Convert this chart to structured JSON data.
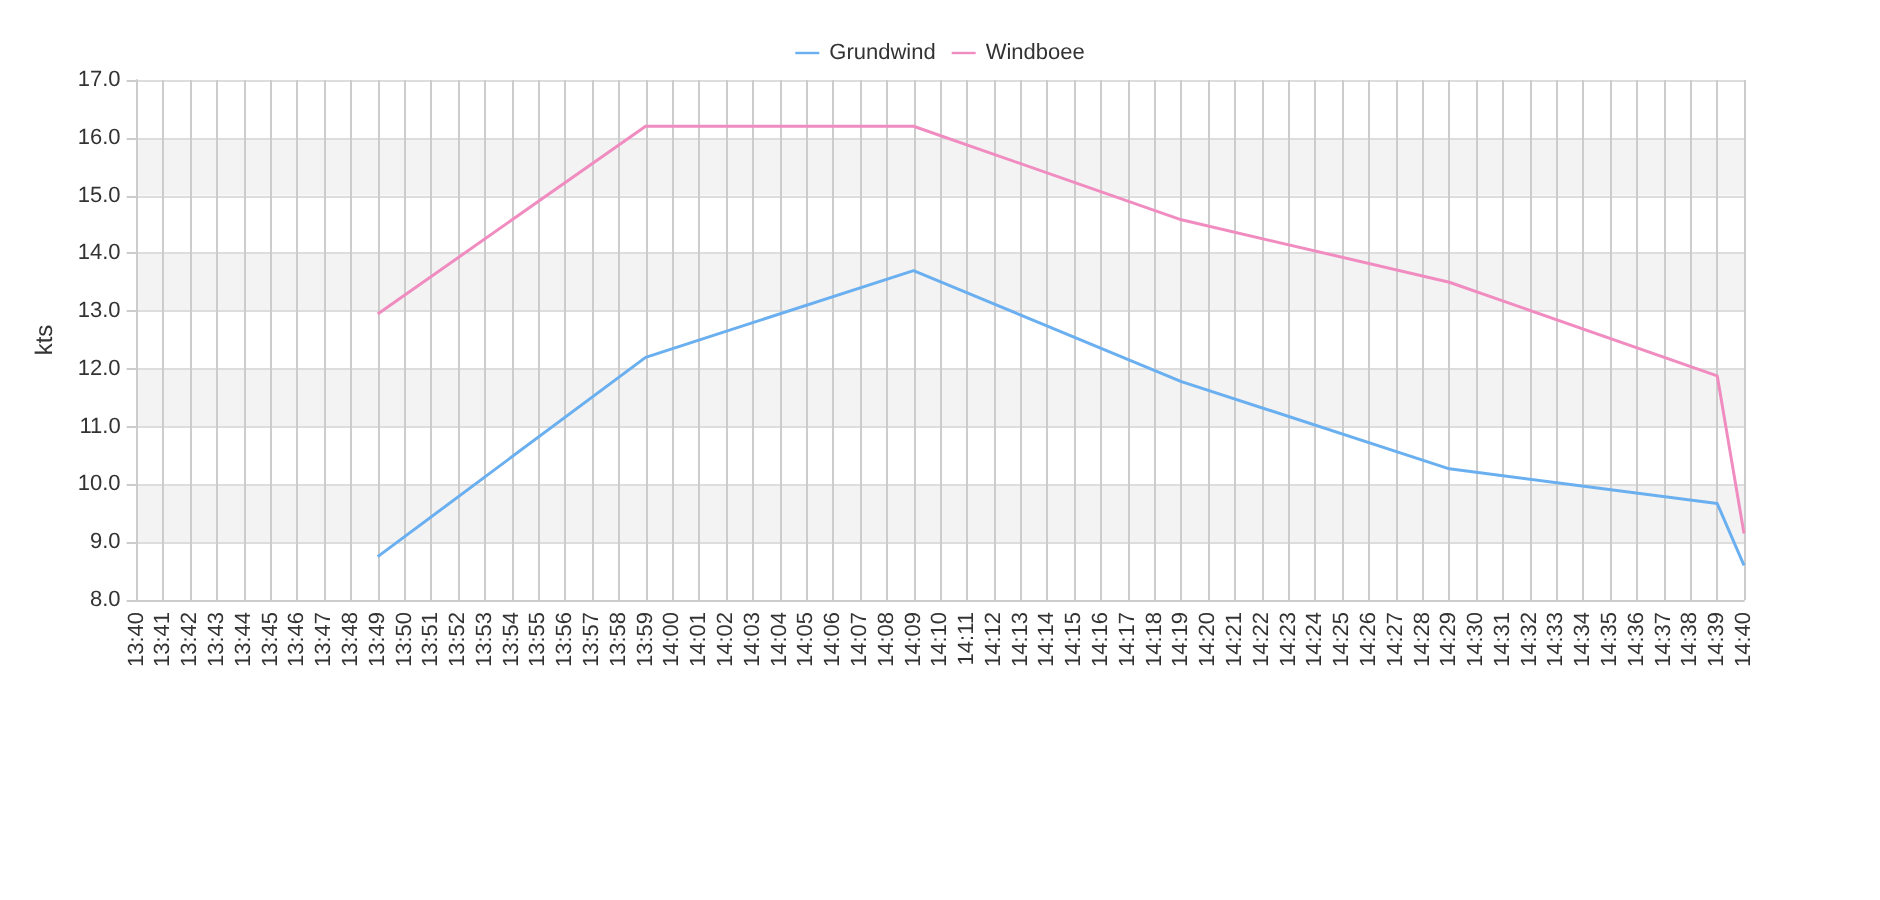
{
  "chart_data": {
    "type": "line",
    "ylabel": "kts",
    "categories": [
      "13:40",
      "13:41",
      "13:42",
      "13:43",
      "13:44",
      "13:45",
      "13:46",
      "13:47",
      "13:48",
      "13:49",
      "13:50",
      "13:51",
      "13:52",
      "13:53",
      "13:54",
      "13:55",
      "13:56",
      "13:57",
      "13:58",
      "13:59",
      "14:00",
      "14:01",
      "14:02",
      "14:03",
      "14:04",
      "14:05",
      "14:06",
      "14:07",
      "14:08",
      "14:09",
      "14:10",
      "14:11",
      "14:12",
      "14:13",
      "14:14",
      "14:15",
      "14:16",
      "14:17",
      "14:18",
      "14:19",
      "14:20",
      "14:21",
      "14:22",
      "14:23",
      "14:24",
      "14:25",
      "14:26",
      "14:27",
      "14:28",
      "14:29",
      "14:30",
      "14:31",
      "14:32",
      "14:33",
      "14:34",
      "14:35",
      "14:36",
      "14:37",
      "14:38",
      "14:39",
      "14:40"
    ],
    "series": [
      {
        "name": "Grundwind",
        "color": "#6aaff0",
        "x": [
          "13:49",
          "13:59",
          "14:09",
          "14:19",
          "14:29",
          "14:39",
          "14:40"
        ],
        "values": [
          8.75,
          12.2,
          13.7,
          11.78,
          10.27,
          9.67,
          8.6
        ]
      },
      {
        "name": "Windboee",
        "color": "#f08cc0",
        "x": [
          "13:49",
          "13:59",
          "14:09",
          "14:19",
          "14:29",
          "14:39",
          "14:40"
        ],
        "values": [
          12.95,
          16.2,
          16.2,
          14.58,
          13.5,
          11.88,
          9.15
        ]
      }
    ],
    "ylim": [
      8,
      17
    ],
    "yticks": [
      {
        "value": 8,
        "label": "8.0"
      },
      {
        "value": 9,
        "label": "9.0"
      },
      {
        "value": 10,
        "label": "10.0"
      },
      {
        "value": 11,
        "label": "11.0"
      },
      {
        "value": 12,
        "label": "12.0"
      },
      {
        "value": 13,
        "label": "13.0"
      },
      {
        "value": 14,
        "label": "14.0"
      },
      {
        "value": 15,
        "label": "15.0"
      },
      {
        "value": 16,
        "label": "16.0"
      },
      {
        "value": 17,
        "label": "17.0"
      }
    ],
    "grid": true,
    "legend": "top",
    "marker": "none",
    "line_style": "solid"
  }
}
